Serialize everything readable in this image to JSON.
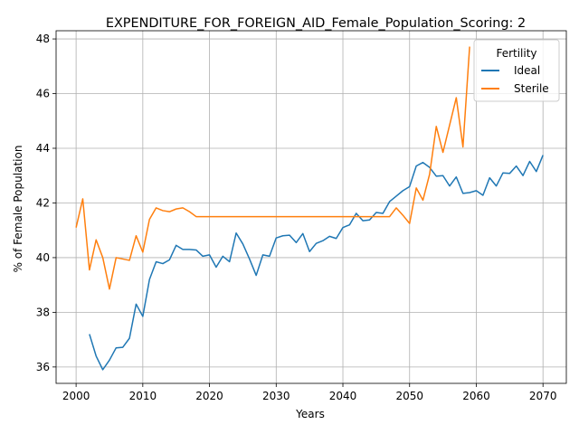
{
  "chart_data": {
    "type": "line",
    "title": "EXPENDITURE_FOR_FOREIGN_AID_Female_Population_Scoring: 2",
    "xlabel": "Years",
    "ylabel": "% of Female Population",
    "xlim": [
      1997,
      2073.5
    ],
    "ylim": [
      35.4,
      48.3
    ],
    "xticks": [
      2000,
      2010,
      2020,
      2030,
      2040,
      2050,
      2060,
      2070
    ],
    "yticks": [
      36,
      38,
      40,
      42,
      44,
      46,
      48
    ],
    "grid": true,
    "legend": {
      "title": "Fertility",
      "placement": "top-right"
    },
    "series": [
      {
        "name": "Ideal",
        "color": "#1f77b4",
        "x": [
          2002,
          2003,
          2004,
          2005,
          2006,
          2007,
          2008,
          2009,
          2010,
          2011,
          2012,
          2013,
          2014,
          2015,
          2016,
          2017,
          2018,
          2019,
          2020,
          2021,
          2022,
          2023,
          2024,
          2025,
          2026,
          2027,
          2028,
          2029,
          2030,
          2031,
          2032,
          2033,
          2034,
          2035,
          2036,
          2037,
          2038,
          2039,
          2040,
          2041,
          2042,
          2043,
          2044,
          2045,
          2046,
          2047,
          2048,
          2049,
          2050,
          2051,
          2052,
          2053,
          2054,
          2055,
          2056,
          2057,
          2058,
          2059,
          2060,
          2061,
          2062,
          2063,
          2064,
          2065,
          2066,
          2067,
          2068,
          2069,
          2070
        ],
        "values": [
          37.2,
          36.4,
          35.9,
          36.25,
          36.7,
          36.72,
          37.05,
          38.3,
          37.85,
          39.2,
          39.85,
          39.78,
          39.92,
          40.45,
          40.3,
          40.3,
          40.28,
          40.05,
          40.1,
          39.65,
          40.05,
          39.85,
          40.9,
          40.5,
          39.95,
          39.35,
          40.1,
          40.05,
          40.72,
          40.8,
          40.82,
          40.55,
          40.88,
          40.22,
          40.52,
          40.62,
          40.78,
          40.7,
          41.1,
          41.2,
          41.62,
          41.35,
          41.38,
          41.65,
          41.62,
          42.05,
          42.25,
          42.45,
          42.6,
          43.35,
          43.48,
          43.3,
          42.98,
          43.0,
          42.62,
          42.95,
          42.35,
          42.38,
          42.45,
          42.28,
          42.92,
          42.62,
          43.1,
          43.08,
          43.35,
          43.0,
          43.52,
          43.15,
          43.75
        ]
      },
      {
        "name": "Sterile",
        "color": "#ff7f0e",
        "x": [
          2000,
          2001,
          2002,
          2003,
          2004,
          2005,
          2006,
          2007,
          2008,
          2009,
          2010,
          2011,
          2012,
          2013,
          2014,
          2015,
          2016,
          2017,
          2018,
          2019,
          2020,
          2021,
          2022,
          2023,
          2024,
          2025,
          2026,
          2027,
          2028,
          2029,
          2030,
          2031,
          2032,
          2033,
          2034,
          2035,
          2036,
          2037,
          2038,
          2039,
          2040,
          2041,
          2042,
          2043,
          2044,
          2045,
          2046,
          2047,
          2048,
          2049,
          2050,
          2051,
          2052,
          2053,
          2054,
          2055,
          2056,
          2057,
          2058,
          2059
        ],
        "values": [
          41.1,
          42.15,
          39.55,
          40.65,
          40.0,
          38.85,
          40.0,
          39.95,
          39.9,
          40.8,
          40.2,
          41.4,
          41.82,
          41.72,
          41.68,
          41.78,
          41.82,
          41.68,
          41.5,
          41.5,
          41.5,
          41.5,
          41.5,
          41.5,
          41.5,
          41.5,
          41.5,
          41.5,
          41.5,
          41.5,
          41.5,
          41.5,
          41.5,
          41.5,
          41.5,
          41.5,
          41.5,
          41.5,
          41.5,
          41.5,
          41.5,
          41.5,
          41.5,
          41.5,
          41.5,
          41.5,
          41.5,
          41.5,
          41.82,
          41.55,
          41.25,
          42.55,
          42.1,
          43.05,
          44.8,
          43.85,
          44.85,
          45.85,
          44.05,
          47.72
        ]
      }
    ]
  }
}
